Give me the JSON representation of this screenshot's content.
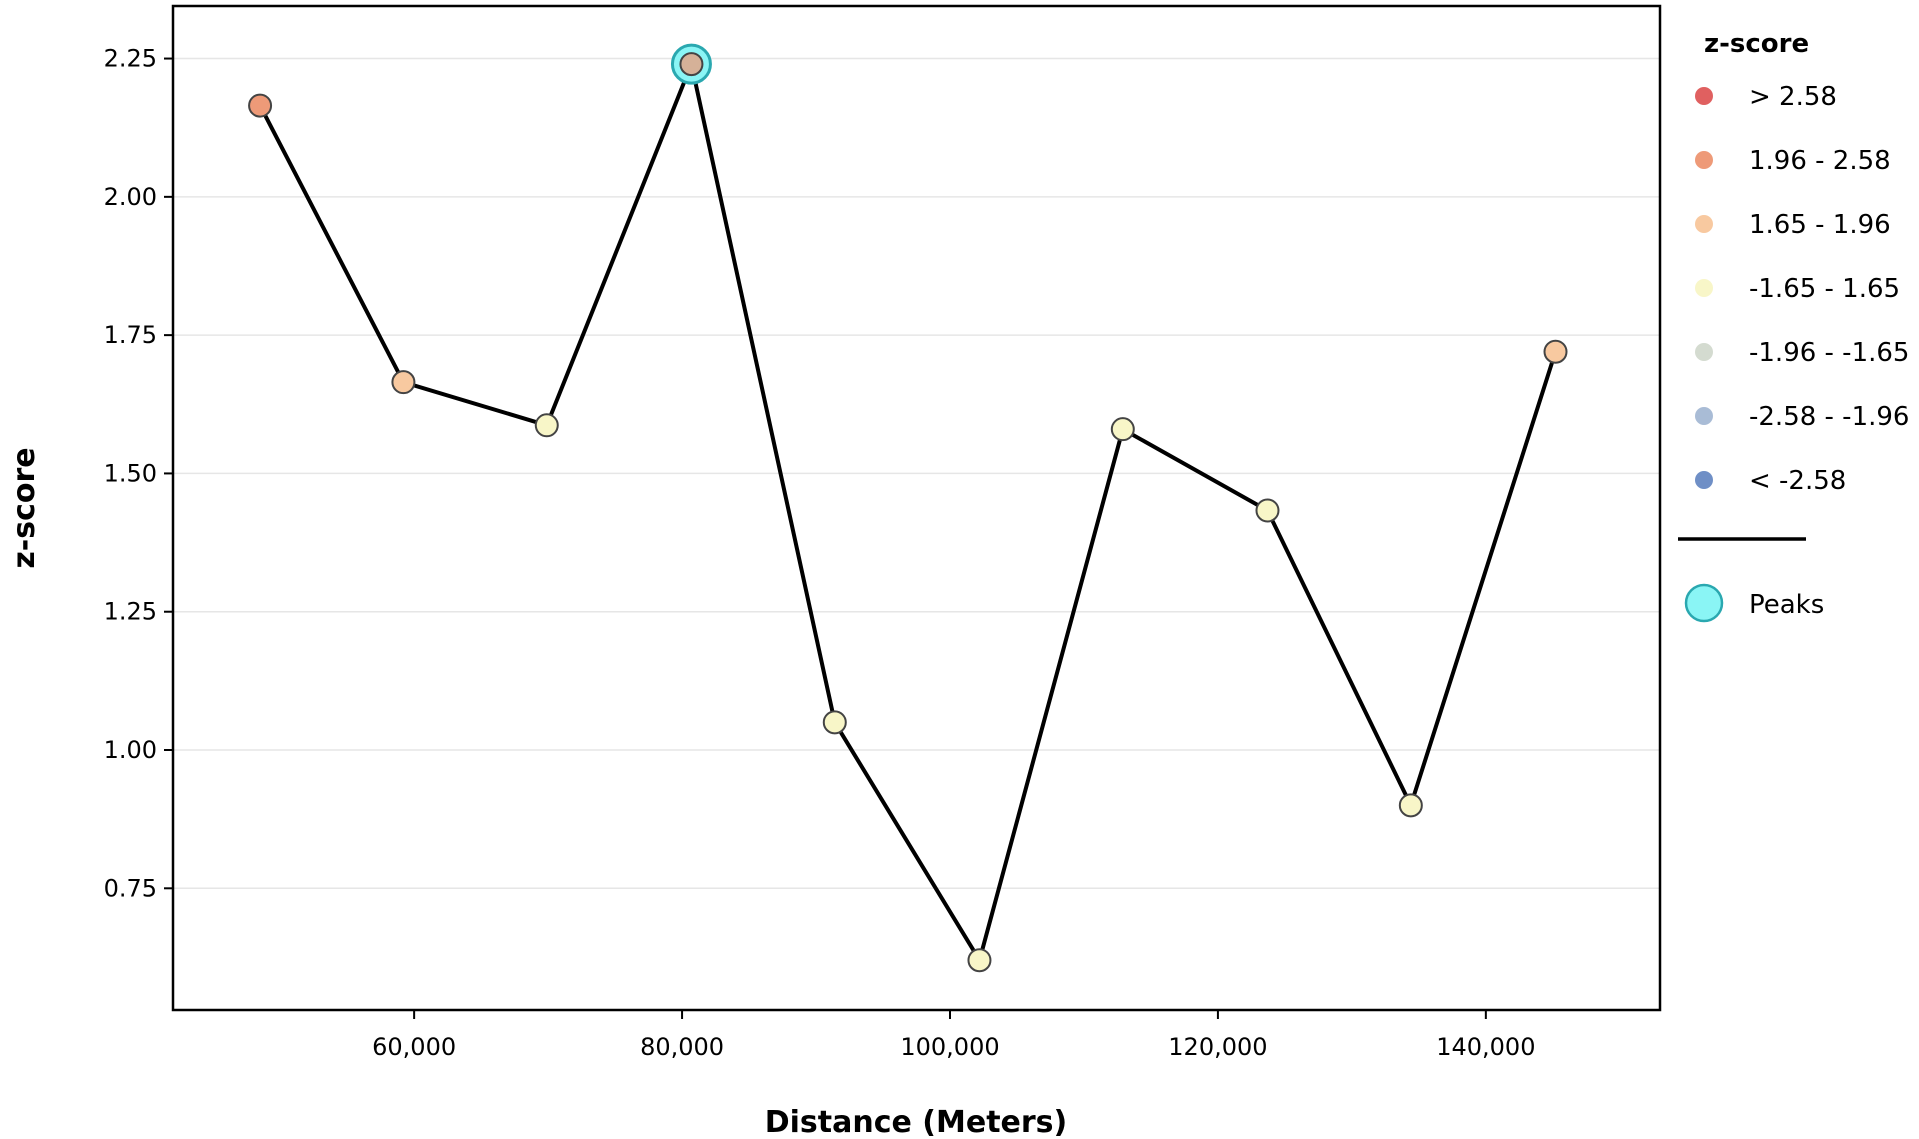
{
  "chart_data": {
    "type": "line",
    "xlabel": "Distance (Meters)",
    "ylabel": "z-score",
    "xlim": [
      42000,
      153000
    ],
    "ylim": [
      0.53,
      2.345
    ],
    "x_ticks": [
      60000,
      80000,
      100000,
      120000,
      140000
    ],
    "x_tick_labels": [
      "60,000",
      "80,000",
      "100,000",
      "120,000",
      "140,000"
    ],
    "y_ticks": [
      0.75,
      1.0,
      1.25,
      1.5,
      1.75,
      2.0,
      2.25
    ],
    "y_tick_labels": [
      "0.75",
      "1.00",
      "1.25",
      "1.50",
      "1.75",
      "2.00",
      "2.25"
    ],
    "grid": "horizontal",
    "line_color": "#000000",
    "points": [
      {
        "x": 48500,
        "y": 2.165,
        "bin": "1.96 - 2.58"
      },
      {
        "x": 59200,
        "y": 1.665,
        "bin": "1.65 - 1.96"
      },
      {
        "x": 69900,
        "y": 1.587,
        "bin": "-1.65 - 1.65"
      },
      {
        "x": 80700,
        "y": 2.24,
        "bin": "1.96 - 2.58",
        "peak": true
      },
      {
        "x": 91400,
        "y": 1.05,
        "bin": "-1.65 - 1.65"
      },
      {
        "x": 102200,
        "y": 0.62,
        "bin": "-1.65 - 1.65"
      },
      {
        "x": 112900,
        "y": 1.58,
        "bin": "-1.65 - 1.65"
      },
      {
        "x": 123700,
        "y": 1.433,
        "bin": "-1.65 - 1.65"
      },
      {
        "x": 134400,
        "y": 0.9,
        "bin": "-1.65 - 1.65"
      },
      {
        "x": 145200,
        "y": 1.72,
        "bin": "1.65 - 1.96"
      }
    ],
    "legend": {
      "title": "z-score",
      "placement": "right",
      "bins": [
        {
          "label": "> 2.58",
          "color": "#e06060"
        },
        {
          "label": "1.96 - 2.58",
          "color": "#ee9a78"
        },
        {
          "label": "1.65 - 1.96",
          "color": "#f8c9a0"
        },
        {
          "label": "-1.65 - 1.65",
          "color": "#f8f6c8"
        },
        {
          "label": "-1.96 - -1.65",
          "color": "#d4dbd0"
        },
        {
          "label": "-2.58 - -1.96",
          "color": "#a9bcd6"
        },
        {
          "label": "< -2.58",
          "color": "#6f8fc6"
        }
      ],
      "peak_label": "Peaks",
      "peak_color": "#8af5f5",
      "peak_edge_color": "#2aa8b0"
    }
  }
}
